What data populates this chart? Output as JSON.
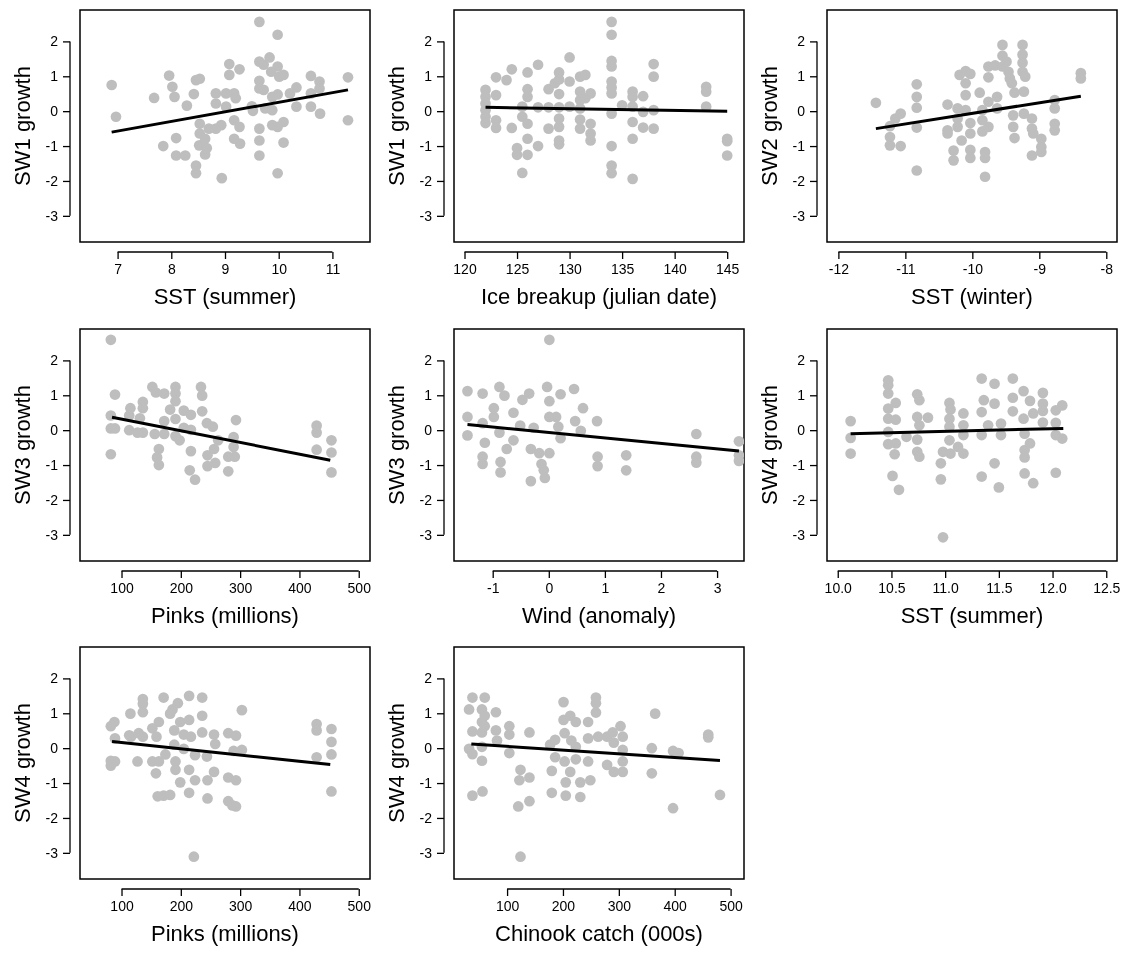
{
  "chart_data": [
    {
      "type": "scatter",
      "xlabel": "SST (summer)",
      "ylabel": "SW1 growth",
      "marker": "circle",
      "xlim": [
        6.3,
        11.7
      ],
      "xticks": [
        7,
        8,
        9,
        10,
        11
      ],
      "ylim": [
        -3.75,
        2.9
      ],
      "yticks": [
        -3,
        -2,
        -1,
        0,
        1,
        2
      ],
      "series": [
        {
          "type": "scatter",
          "color": "#bebebe",
          "x": [
            6.89,
            6.97,
            7.68,
            7.96,
            8.02,
            8.06,
            7.85,
            8.09,
            8.09,
            8.26,
            8.29,
            8.42,
            8.46,
            8.53,
            8.46,
            8.46,
            8.53,
            8.53,
            8.52,
            8.63,
            8.66,
            8.63,
            8.7,
            8.83,
            8.83,
            8.94,
            8.93,
            8.83,
            9.02,
            9.08,
            9.08,
            9.17,
            9.2,
            9.17,
            9.27,
            9.28,
            9.17,
            9.27,
            9.02,
            9.5,
            9.52,
            9.64,
            9.64,
            9.72,
            9.83,
            9.64,
            9.64,
            9.72,
            9.64,
            9.64,
            9.64,
            9.75,
            9.88,
            9.88,
            9.86,
            9.98,
            9.98,
            10.01,
            10.09,
            9.98,
            9.88,
            9.98,
            10.09,
            10.09,
            9.98,
            10.21,
            10.33,
            10.33,
            10.6,
            10.6,
            10.6,
            10.76,
            10.76,
            10.77,
            11.29,
            11.29
          ],
          "values": [
            0.75,
            -0.16,
            0.38,
            1.02,
            0.7,
            0.41,
            -1.0,
            -0.77,
            -1.27,
            -1.27,
            0.16,
            0.49,
            0.89,
            0.93,
            -1.56,
            -1.78,
            -0.36,
            -0.64,
            -0.98,
            -1.24,
            -1.06,
            -0.79,
            -0.5,
            0.51,
            0.22,
            -1.92,
            -0.4,
            -0.5,
            0.51,
            1.35,
            1.04,
            0.51,
            0.37,
            -0.26,
            -0.45,
            -0.93,
            -0.79,
            1.2,
            0.13,
            0.14,
            0.01,
            2.56,
            1.42,
            1.33,
            1.54,
            0.87,
            0.65,
            0.61,
            -0.5,
            -0.84,
            -1.27,
            0.08,
            0.03,
            -0.4,
            1.13,
            1.28,
            2.19,
            0.99,
            1.04,
            0.48,
            0.41,
            -0.45,
            -0.31,
            -0.9,
            -1.78,
            0.51,
            0.68,
            0.13,
            1.01,
            0.51,
            0.13,
            0.85,
            0.65,
            -0.07,
            0.97,
            -0.26
          ]
        },
        {
          "type": "line",
          "color": "#000000",
          "x": [
            6.89,
            11.29
          ],
          "values": [
            -0.6,
            0.61
          ],
          "marker": "none"
        }
      ]
    },
    {
      "type": "scatter",
      "xlabel": "Ice breakup (julian date)",
      "ylabel": "SW1 growth",
      "marker": "circle",
      "xlim": [
        119,
        146.6
      ],
      "xticks": [
        120,
        125,
        130,
        135,
        140,
        145
      ],
      "ylim": [
        -3.75,
        2.9
      ],
      "yticks": [
        -3,
        -2,
        -1,
        0,
        1,
        2
      ],
      "series": [
        {
          "type": "scatter",
          "color": "#bebebe",
          "x": [
            122,
            122,
            122,
            122,
            122,
            122,
            123,
            123,
            123,
            123,
            124,
            124.5,
            124.5,
            125,
            125,
            125.5,
            125.5,
            125.5,
            126,
            126,
            126,
            126,
            126,
            126,
            127,
            127,
            127,
            128,
            128,
            128,
            128.6,
            129,
            129,
            129,
            129,
            129,
            129,
            129,
            129,
            130,
            130,
            130,
            131,
            131,
            131,
            131,
            131,
            131,
            131.5,
            131.5,
            132,
            132,
            132,
            132,
            134,
            134,
            134,
            134,
            134,
            134,
            134,
            134,
            134,
            134,
            134,
            135,
            136,
            136,
            136,
            136,
            136,
            136,
            137,
            137,
            137,
            138,
            138,
            138,
            138,
            143,
            143,
            143,
            145,
            145,
            145
          ],
          "values": [
            0.61,
            0.41,
            0.22,
            0.03,
            -0.16,
            -0.34,
            0.97,
            0.46,
            -0.26,
            -0.48,
            0.89,
            1.2,
            -0.48,
            -1.06,
            -1.25,
            -1.77,
            0.13,
            -0.16,
            1.11,
            0.63,
            0.41,
            -0.36,
            -0.79,
            -1.25,
            1.33,
            0.11,
            -1.0,
            0.63,
            0.11,
            -0.5,
            0.8,
            1.11,
            0.91,
            0.49,
            0.11,
            -0.21,
            -0.45,
            -0.84,
            -0.95,
            1.54,
            0.85,
            0.13,
            0.99,
            0.56,
            0.32,
            0.08,
            -0.24,
            -0.5,
            1.04,
            0.37,
            0.51,
            -0.36,
            -0.64,
            -0.84,
            2.56,
            2.19,
            1.44,
            1.28,
            0.85,
            0.68,
            0.51,
            -0.07,
            -1.0,
            -1.56,
            -1.78,
            0.17,
            0.56,
            0.41,
            0.13,
            -0.31,
            -0.79,
            -1.94,
            0.43,
            -0.02,
            -0.47,
            1.35,
            0.99,
            0.03,
            -0.5,
            0.7,
            0.56,
            0.13,
            -0.79,
            -0.86,
            -1.27
          ]
        },
        {
          "type": "line",
          "color": "#000000",
          "x": [
            122,
            145
          ],
          "values": [
            0.11,
            0.0
          ],
          "marker": "none"
        }
      ]
    },
    {
      "type": "scatter",
      "xlabel": "SST (winter)",
      "ylabel": "SW2 growth",
      "marker": "circle",
      "xlim": [
        -12.17,
        -7.84
      ],
      "xticks": [
        -12,
        -11,
        -10,
        -9,
        -8
      ],
      "ylim": [
        -3.75,
        2.9
      ],
      "yticks": [
        -3,
        -2,
        -1,
        0,
        1,
        2
      ],
      "series": [
        {
          "type": "scatter",
          "color": "#bebebe",
          "x": [
            -11.44,
            -11.23,
            -11.23,
            -11.23,
            -11.15,
            -11.07,
            -11.07,
            -10.83,
            -10.83,
            -10.83,
            -10.83,
            -10.83,
            -10.37,
            -10.37,
            -10.37,
            -10.28,
            -10.28,
            -10.22,
            -10.22,
            -10.22,
            -10.19,
            -10.16,
            -10.1,
            -10.1,
            -10.1,
            -10.1,
            -10.03,
            -10.03,
            -10.03,
            -10.03,
            -10.03,
            -9.89,
            -9.85,
            -9.85,
            -9.85,
            -9.81,
            -9.81,
            -9.81,
            -9.76,
            -9.76,
            -9.76,
            -9.76,
            -9.66,
            -9.63,
            -9.63,
            -9.55,
            -9.55,
            -9.55,
            -9.49,
            -9.46,
            -9.44,
            -9.41,
            -9.39,
            -9.39,
            -9.37,
            -9.37,
            -9.25,
            -9.25,
            -9.25,
            -9.25,
            -9.21,
            -9.23,
            -9.23,
            -9.11,
            -9.11,
            -9.11,
            -9.09,
            -8.97,
            -8.97,
            -8.97,
            -8.77,
            -8.77,
            -8.77,
            -8.77,
            -8.38,
            -8.38
          ],
          "values": [
            0.24,
            -0.43,
            -0.74,
            -0.98,
            -0.21,
            -0.07,
            -1.0,
            0.77,
            0.41,
            0.1,
            -0.47,
            -1.7,
            0.19,
            -0.55,
            -0.64,
            -1.13,
            -1.41,
            0.08,
            -0.21,
            -0.45,
            1.04,
            -0.84,
            1.15,
            0.8,
            0.46,
            0.03,
            1.07,
            -0.34,
            -0.64,
            -1.11,
            -1.34,
            0.53,
            0.03,
            -0.26,
            -0.58,
            -1.17,
            -1.34,
            -1.88,
            1.28,
            0.97,
            0.27,
            -0.45,
            1.31,
            0.41,
            0.08,
            1.9,
            1.59,
            1.28,
            1.42,
            1.13,
            0.94,
            0.8,
            -0.12,
            -0.45,
            -0.77,
            0.53,
            1.9,
            1.62,
            1.39,
            1.13,
            0.99,
            0.56,
            -0.07,
            -0.21,
            -0.5,
            -1.27,
            -0.64,
            -0.79,
            -1.03,
            -1.17,
            0.32,
            0.08,
            -0.36,
            -0.55,
            1.09,
            0.94
          ]
        },
        {
          "type": "line",
          "color": "#000000",
          "x": [
            -11.44,
            -8.38
          ],
          "values": [
            -0.5,
            0.43
          ],
          "marker": "none"
        }
      ]
    },
    {
      "type": "scatter",
      "xlabel": "Pinks (millions)",
      "ylabel": "SW3 growth",
      "marker": "circle",
      "xlim": [
        30,
        519
      ],
      "xticks": [
        100,
        200,
        300,
        400,
        500
      ],
      "ylim": [
        -3.75,
        2.9
      ],
      "yticks": [
        -3,
        -2,
        -1,
        0,
        1,
        2
      ],
      "series": [
        {
          "type": "scatter",
          "color": "#bebebe",
          "x": [
            82,
            82,
            82,
            82,
            89,
            89,
            113,
            113,
            115,
            127,
            131,
            136,
            136,
            136,
            152,
            156,
            158,
            163,
            160,
            163,
            172,
            172,
            172,
            182,
            191,
            191,
            191,
            191,
            191,
            198,
            205,
            205,
            217,
            217,
            215,
            224,
            217,
            234,
            236,
            236,
            244,
            245,
            245,
            254,
            256,
            258,
            263,
            280,
            280,
            289,
            289,
            293,
            291,
            429,
            429,
            429,
            454,
            454,
            454
          ],
          "values": [
            2.59,
            0.42,
            0.05,
            -0.69,
            1.02,
            0.05,
            0.42,
            0,
            0.63,
            -0.07,
            0.34,
            0.81,
            0.63,
            -0.07,
            1.24,
            -0.11,
            1.08,
            -0.54,
            -0.78,
            -1.0,
            1.05,
            0.26,
            -0.11,
            0.59,
            1.24,
            1.05,
            0.83,
            0.32,
            -0.17,
            -0.29,
            0.56,
            0.07,
            0.44,
            0.01,
            -1.15,
            -1.42,
            -0.6,
            1.24,
            0.99,
            0.54,
            0.2,
            -0.72,
            -1.03,
            0.1,
            -0.54,
            -0.94,
            -0.29,
            -0.76,
            -1.18,
            -0.2,
            -0.48,
            0.29,
            -0.76,
            0.13,
            -0.07,
            -0.56,
            -0.29,
            -0.64,
            -1.21
          ]
        },
        {
          "type": "line",
          "color": "#000000",
          "x": [
            84,
            452
          ],
          "values": [
            0.37,
            -0.86
          ],
          "marker": "none"
        }
      ]
    },
    {
      "type": "scatter",
      "xlabel": "Wind (anomaly)",
      "ylabel": "SW3 growth",
      "marker": "circle",
      "xlim": [
        -1.69,
        3.48
      ],
      "xticks": [
        -1,
        0,
        1,
        2,
        3
      ],
      "ylim": [
        -3.75,
        2.9
      ],
      "yticks": [
        -3,
        -2,
        -1,
        0,
        1,
        2
      ],
      "series": [
        {
          "type": "scatter",
          "color": "#bebebe",
          "x": [
            -1.45,
            -1.45,
            -1.45,
            -1.18,
            -1.18,
            -1.18,
            -1.18,
            -1.14,
            -0.98,
            -0.98,
            -0.88,
            -0.88,
            -0.86,
            -0.86,
            -0.79,
            -0.75,
            -0.63,
            -0.63,
            -0.51,
            -0.47,
            -0.35,
            -0.32,
            -0.32,
            -0.27,
            -0.17,
            -0.13,
            -0.09,
            -0.07,
            0.01,
            -0.03,
            0.01,
            0.01,
            0.01,
            0.13,
            0.17,
            0.21,
            0.21,
            0.45,
            0.47,
            0.57,
            0.61,
            0.86,
            0.87,
            0.87,
            1.38,
            1.38,
            2.63,
            2.63,
            2.63,
            3.39,
            3.39,
            3.39
          ],
          "values": [
            1.12,
            0.38,
            -0.15,
            1.05,
            0.2,
            -0.76,
            -0.97,
            -0.36,
            0.38,
            0.63,
            1.24,
            -0.07,
            -0.91,
            -1.21,
            0.99,
            -0.54,
            0.5,
            -0.29,
            0.13,
            0.87,
            1.05,
            -1.46,
            -0.54,
            0.07,
            -0.66,
            -0.97,
            -1.15,
            -1.37,
            2.59,
            1.24,
            0.83,
            0.38,
            -0.66,
            0.38,
            0.1,
            1.03,
            -0.23,
            1.18,
            0.26,
            -0.02,
            0.63,
            0.26,
            -0.76,
            -1.03,
            -0.72,
            -1.15,
            -0.11,
            -0.76,
            -0.93,
            -0.32,
            -0.72,
            -0.88
          ]
        },
        {
          "type": "line",
          "color": "#000000",
          "x": [
            -1.45,
            3.39
          ],
          "values": [
            0.16,
            -0.6
          ],
          "marker": "none"
        }
      ]
    },
    {
      "type": "scatter",
      "xlabel": "SST (summer)",
      "ylabel": "SW4 growth",
      "marker": "circle",
      "xlim": [
        9.9,
        12.6
      ],
      "xticks": [
        {
          "value": 10,
          "label": "10.0"
        },
        {
          "value": 10.5,
          "label": "10.5"
        },
        {
          "value": 11,
          "label": "11.0"
        },
        {
          "value": 11.5,
          "label": "11.5"
        },
        {
          "value": 12,
          "label": "12.0"
        },
        {
          "value": 12.5,
          "label": "12.5"
        }
      ],
      "ylim": [
        -3.75,
        2.9
      ],
      "yticks": [
        -3,
        -2,
        -1,
        0,
        1,
        2
      ],
      "series": [
        {
          "type": "scatter",
          "color": "#bebebe",
          "x": [
            10.12,
            10.12,
            10.12,
            10.47,
            10.47,
            10.47,
            10.47,
            10.47,
            10.47,
            10.47,
            10.51,
            10.54,
            10.54,
            10.54,
            10.53,
            10.57,
            10.64,
            10.74,
            10.76,
            10.74,
            10.76,
            10.74,
            10.74,
            10.76,
            10.84,
            10.96,
            10.96,
            10.98,
            10.98,
            11.04,
            11.05,
            11.04,
            11.04,
            11.04,
            11.05,
            11.12,
            11.17,
            11.17,
            11.17,
            11.17,
            11.34,
            11.36,
            11.34,
            11.4,
            11.34,
            11.34,
            11.46,
            11.46,
            11.46,
            11.52,
            11.52,
            11.5,
            11.63,
            11.63,
            11.63,
            11.73,
            11.73,
            11.74,
            11.74,
            11.74,
            11.74,
            11.79,
            11.82,
            11.79,
            11.82,
            11.91,
            11.91,
            11.91,
            11.91,
            12.03,
            12.03,
            12.03,
            12.03,
            12.09,
            12.09
          ],
          "values": [
            0.26,
            -0.22,
            -0.67,
            1.43,
            1.29,
            1.05,
            0.62,
            0.33,
            -0.05,
            -0.4,
            -1.31,
            0.78,
            0.3,
            -0.38,
            -0.69,
            -1.71,
            -0.19,
            1.03,
            0.86,
            0.38,
            0.14,
            -0.27,
            -0.62,
            -0.76,
            0.36,
            -1.41,
            -0.95,
            -3.07,
            -0.62,
            0.78,
            0.59,
            0.33,
            0.1,
            -0.29,
            -0.67,
            -0.48,
            0.48,
            0.14,
            -0.14,
            -0.67,
            1.48,
            0.86,
            0.52,
            0.14,
            -0.14,
            -1.33,
            1.33,
            0.76,
            -0.95,
            0.19,
            -0.14,
            -1.64,
            1.48,
            0.93,
            0.54,
            1.12,
            0.33,
            -0.1,
            -0.57,
            -0.78,
            -1.24,
            0.84,
            0.48,
            -0.38,
            -1.52,
            1.07,
            0.76,
            0.55,
            0.22,
            0.57,
            0.21,
            -0.14,
            -1.22,
            0.71,
            -0.24
          ]
        },
        {
          "type": "line",
          "color": "#000000",
          "x": [
            10.12,
            12.1
          ],
          "values": [
            -0.1,
            0.05
          ],
          "marker": "none"
        }
      ]
    },
    {
      "type": "scatter",
      "xlabel": "Pinks (millions)",
      "ylabel": "SW4 growth",
      "marker": "circle",
      "xlim": [
        30,
        519
      ],
      "xticks": [
        100,
        200,
        300,
        400,
        500
      ],
      "ylim": [
        -3.75,
        2.9
      ],
      "yticks": [
        -3,
        -2,
        -1,
        0,
        1,
        2
      ],
      "series": [
        {
          "type": "scatter",
          "color": "#bebebe",
          "x": [
            82,
            88,
            82,
            82,
            89,
            89,
            113,
            115,
            116,
            127,
            129,
            136,
            136,
            136,
            136,
            152,
            152,
            158,
            159,
            163,
            163,
            161,
            171,
            171,
            174,
            182,
            182,
            186,
            189,
            189,
            191,
            191,
            195,
            199,
            199,
            205,
            205,
            214,
            214,
            214,
            214,
            217,
            224,
            224,
            222,
            236,
            236,
            236,
            244,
            245,
            245,
            256,
            256,
            258,
            280,
            280,
            280,
            287,
            293,
            293,
            293,
            289,
            303,
            303,
            429,
            429,
            429,
            454,
            454,
            454,
            454
          ],
          "values": [
            0.63,
            0.75,
            -0.36,
            -0.5,
            -0.38,
            0.28,
            0.37,
            0.99,
            0.33,
            -0.38,
            0.43,
            1.41,
            1.27,
            1.03,
            0.33,
            0.57,
            -0.38,
            -0.72,
            0.33,
            0.75,
            -0.38,
            -1.38,
            1.45,
            -1.36,
            -0.18,
            -1.34,
            0.99,
            1.11,
            0.51,
            0.1,
            -0.38,
            -0.62,
            1.29,
            -0.98,
            0.75,
            0.39,
            -0.02,
            1.5,
            -1.28,
            -0.62,
            0.81,
            0.33,
            -0.2,
            -0.92,
            -3.11,
            1.45,
            0.93,
            0.45,
            -0.24,
            -0.92,
            -1.44,
            0.39,
            -0.68,
            0.12,
            0.43,
            -0.84,
            -1.52,
            -1.64,
            0.36,
            -0.92,
            -1.67,
            -0.08,
            1.09,
            -0.05,
            0.69,
            0.51,
            -0.26,
            0.55,
            0.18,
            -0.18,
            -1.24
          ]
        },
        {
          "type": "line",
          "color": "#000000",
          "x": [
            84,
            452
          ],
          "values": [
            0.19,
            -0.47
          ],
          "marker": "none"
        }
      ]
    },
    {
      "type": "scatter",
      "xlabel": "Chinook catch (000s)",
      "ylabel": "SW4 growth",
      "marker": "circle",
      "xlim": [
        5,
        524
      ],
      "xticks": [
        100,
        200,
        300,
        400,
        500
      ],
      "ylim": [
        -3.75,
        2.9
      ],
      "yticks": [
        -3,
        -2,
        -1,
        0,
        1,
        2
      ],
      "series": [
        {
          "type": "scatter",
          "color": "#bebebe",
          "x": [
            32,
            38,
            38,
            32,
            38,
            38,
            55,
            55,
            55,
            55,
            55,
            56,
            60,
            60,
            60,
            80,
            80,
            82,
            104,
            104,
            104,
            120,
            122,
            124,
            124,
            140,
            140,
            140,
            177,
            180,
            180,
            186,
            186,
            201,
            201,
            203,
            203,
            205,
            205,
            213,
            213,
            215,
            223,
            223,
            223,
            231,
            231,
            245,
            245,
            245,
            249,
            259,
            259,
            259,
            263,
            279,
            279,
            289,
            291,
            291,
            303,
            307,
            307,
            307,
            307,
            359,
            359,
            365,
            397,
            397,
            407,
            460,
            460,
            481
          ],
          "values": [
            1.11,
            1.45,
            0.48,
            -0.02,
            -0.17,
            -1.36,
            1.11,
            0.75,
            0.45,
            0.04,
            -0.36,
            -1.24,
            1.45,
            0.93,
            0.63,
            1.03,
            0.51,
            0.22,
            0.63,
            0.39,
            -0.14,
            -1.67,
            -0.92,
            -0.62,
            -3.11,
            0.45,
            -0.84,
            -1.52,
            0.1,
            -1.28,
            -0.65,
            0.24,
            -0.26,
            1.32,
            0.81,
            0.43,
            -0.38,
            -1.36,
            -0.98,
            0.93,
            -0.68,
            0.22,
            0.75,
            0.04,
            -0.32,
            -1.4,
            -0.98,
            0.75,
            0.28,
            -0.38,
            -0.92,
            1.45,
            1.29,
            1.02,
            0.33,
            0.33,
            -0.48,
            0.45,
            0.16,
            -0.68,
            0.63,
            0.33,
            -0.05,
            -0.38,
            -0.68,
            0.0,
            -0.72,
            0.99,
            -0.08,
            -1.72,
            -0.14,
            0.39,
            0.31,
            -1.34
          ]
        },
        {
          "type": "line",
          "color": "#000000",
          "x": [
            36,
            481
          ],
          "values": [
            0.12,
            -0.35
          ],
          "marker": "none"
        }
      ]
    }
  ]
}
